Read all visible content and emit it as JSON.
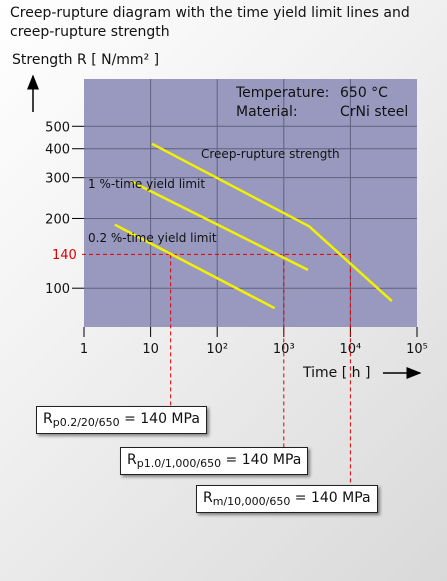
{
  "title": "Creep-rupture diagram with the time yield limit lines and creep-rupture strength",
  "chart_data": {
    "type": "line",
    "x_scale": "log",
    "y_scale": "log",
    "xlim": [
      1,
      100000
    ],
    "ylim": [
      68,
      800
    ],
    "xlabel": "Time [ h ]",
    "ylabel": "Strength R [ N/mm² ]",
    "x_ticks": [
      {
        "value": 1,
        "label": "1"
      },
      {
        "value": 10,
        "label": "10"
      },
      {
        "value": 100,
        "label": "10²"
      },
      {
        "value": 1000,
        "label": "10³"
      },
      {
        "value": 10000,
        "label": "10⁴"
      },
      {
        "value": 100000,
        "label": "10⁵"
      }
    ],
    "y_ticks": [
      {
        "value": 100,
        "label": "100"
      },
      {
        "value": 200,
        "label": "200"
      },
      {
        "value": 300,
        "label": "300"
      },
      {
        "value": 400,
        "label": "400"
      },
      {
        "value": 500,
        "label": "500"
      }
    ],
    "info": {
      "temperature_label": "Temperature:",
      "temperature_value": "650 °C",
      "material_label": "Material:",
      "material_value": "CrNi steel"
    },
    "reference_line": {
      "y": 140,
      "label": "140",
      "color": "#e00000"
    },
    "series": [
      {
        "name": "Creep-rupture strength",
        "points": [
          [
            10.5,
            420
          ],
          [
            2400,
            185
          ],
          [
            42000,
            88
          ]
        ],
        "color": "#f2f200"
      },
      {
        "name": "1 %-time yield limit",
        "points": [
          [
            5,
            290
          ],
          [
            2300,
            120
          ]
        ],
        "color": "#f2f200"
      },
      {
        "name": "0.2 %-time yield limit",
        "points": [
          [
            2.9,
            188
          ],
          [
            730,
            82
          ]
        ],
        "color": "#f2f200"
      }
    ],
    "markers": [
      {
        "x": 20,
        "y": 140
      },
      {
        "x": 1000,
        "y": 140
      },
      {
        "x": 10000,
        "y": 140
      }
    ],
    "colors": {
      "plot_bg": "#9999bf",
      "grid": "#606080",
      "line": "#f2f200",
      "marker": "#e00000"
    }
  },
  "callouts": [
    {
      "symbol": "R",
      "subscript": "p0.2/20/650",
      "equals": " = 140 MPa"
    },
    {
      "symbol": "R",
      "subscript": "p1.0/1,000/650",
      "equals": " = 140 MPa"
    },
    {
      "symbol": "R",
      "subscript": "m/10,000/650",
      "equals": " = 140 MPa"
    }
  ]
}
